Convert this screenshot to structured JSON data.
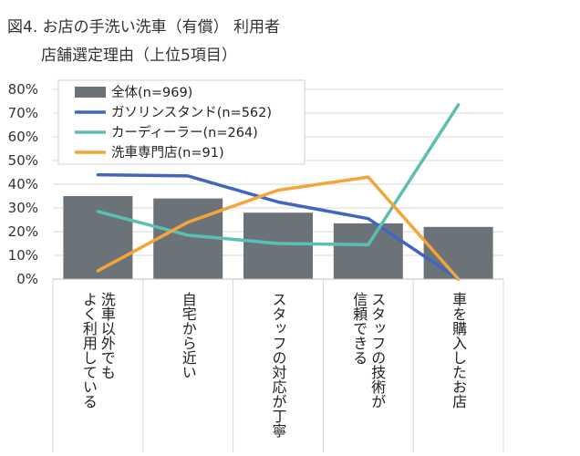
{
  "title": {
    "line1": "図4. お店の手洗い洗車（有償） 利用者",
    "line2": "店舗選定理由（上位5項目）"
  },
  "chart_data": {
    "type": "bar+line",
    "title": "図4. お店の手洗い洗車（有償） 利用者 店舗選定理由（上位5項目）",
    "categories": [
      [
        "洗車以外でも",
        "よく利用している"
      ],
      [
        "自宅から近い"
      ],
      [
        "スタッフの対応が丁寧"
      ],
      [
        "スタッフの技術が",
        "信頼できる"
      ],
      [
        "車を購入したお店"
      ]
    ],
    "y_ticks": [
      "0%",
      "10%",
      "20%",
      "30%",
      "40%",
      "50%",
      "60%",
      "70%",
      "80%"
    ],
    "ylim": [
      0,
      80
    ],
    "grid": true,
    "legend_position": "top-left",
    "series": [
      {
        "name": "全体(n=969)",
        "kind": "bar",
        "color": "#6b7379",
        "values": [
          35,
          34,
          28,
          23.5,
          22
        ]
      },
      {
        "name": "ガソリンスタンド(n=562)",
        "kind": "line",
        "color": "#4266c0",
        "values": [
          44,
          43.5,
          32.5,
          25.5,
          0
        ]
      },
      {
        "name": "カーディーラー(n=264)",
        "kind": "line",
        "color": "#5bbfb2",
        "values": [
          28.5,
          18.5,
          15,
          14.5,
          73.5
        ]
      },
      {
        "name": "洗車専門店(n=91)",
        "kind": "line",
        "color": "#f5a43a",
        "values": [
          3.5,
          24,
          37.5,
          43,
          0
        ]
      }
    ]
  }
}
